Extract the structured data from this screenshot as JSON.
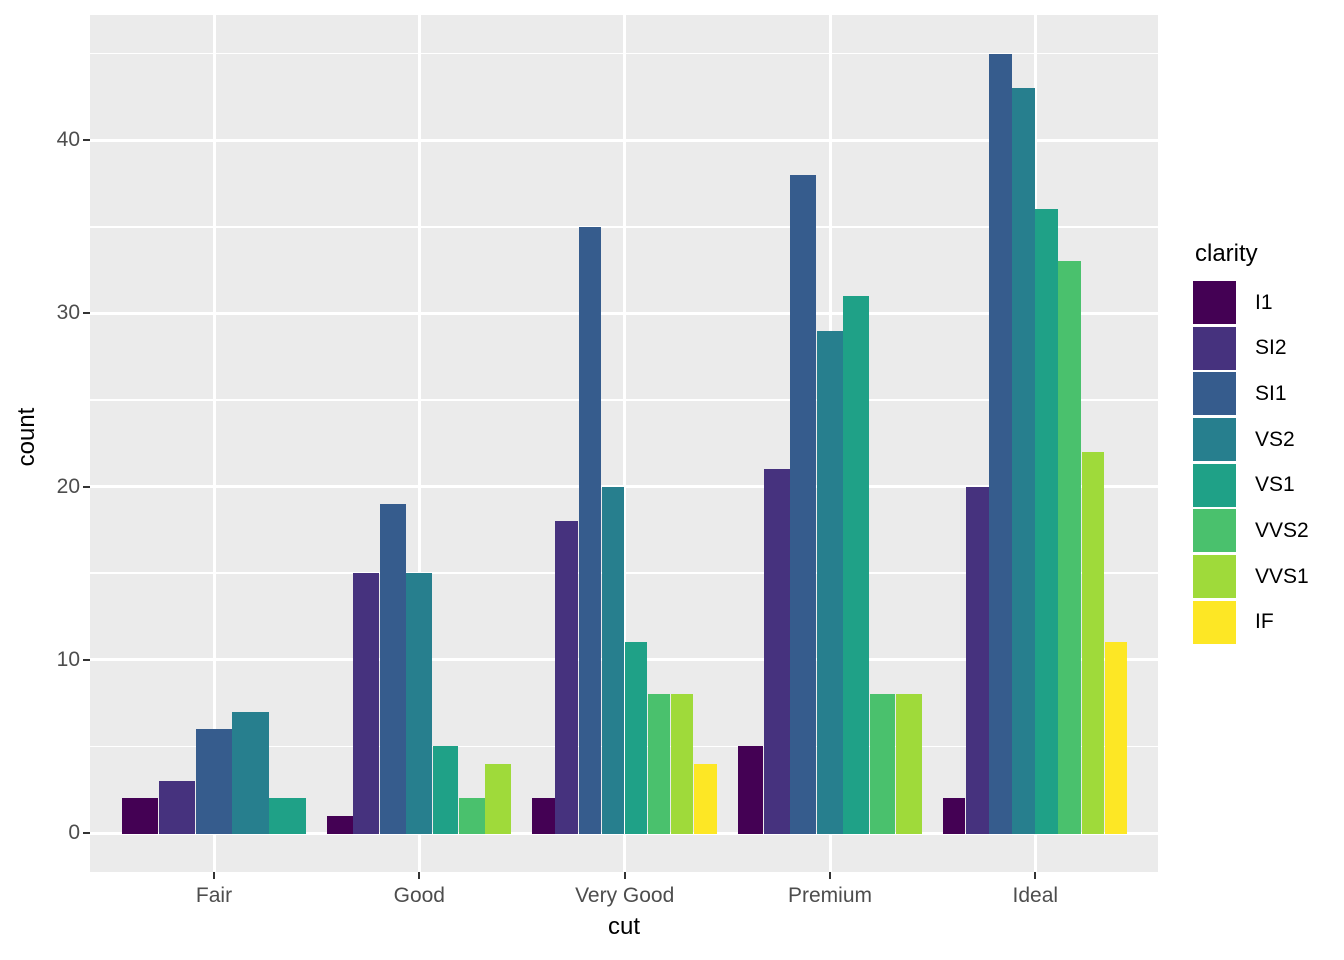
{
  "figure": {
    "panel_background": "#EBEBEB",
    "gridline_color": "#FFFFFF",
    "tick_mark_color": "#333333",
    "axis_text_color": "#4D4D4D",
    "axis_title_color": "#000000"
  },
  "chart_data": {
    "type": "bar",
    "mode": "dodged",
    "title": "",
    "xlabel": "cut",
    "ylabel": "count",
    "legend_title": "clarity",
    "legend_position": "right",
    "grid": true,
    "ylim": [
      0,
      45
    ],
    "yticks": [
      0,
      10,
      20,
      30,
      40
    ],
    "yticks_minor": [
      5,
      15,
      25,
      35,
      45
    ],
    "categories": [
      "Fair",
      "Good",
      "Very Good",
      "Premium",
      "Ideal"
    ],
    "series": [
      {
        "name": "I1",
        "color": "#440154",
        "values": [
          2,
          1,
          2,
          5,
          2
        ]
      },
      {
        "name": "SI2",
        "color": "#46327E",
        "values": [
          3,
          15,
          18,
          21,
          20
        ]
      },
      {
        "name": "SI1",
        "color": "#365C8D",
        "values": [
          6,
          19,
          35,
          38,
          45
        ]
      },
      {
        "name": "VS2",
        "color": "#277F8E",
        "values": [
          7,
          15,
          20,
          29,
          43
        ]
      },
      {
        "name": "VS1",
        "color": "#1FA187",
        "values": [
          2,
          5,
          11,
          31,
          36
        ]
      },
      {
        "name": "VVS2",
        "color": "#4AC16D",
        "values": [
          0,
          2,
          8,
          8,
          33
        ]
      },
      {
        "name": "VVS1",
        "color": "#9FDA3A",
        "values": [
          0,
          4,
          8,
          8,
          22
        ]
      },
      {
        "name": "IF",
        "color": "#FDE725",
        "values": [
          0,
          0,
          4,
          0,
          11
        ]
      }
    ],
    "note_zero_values": "a value of 0 means the bar is absent; remaining bars in that group widen to fill the dodge width"
  }
}
